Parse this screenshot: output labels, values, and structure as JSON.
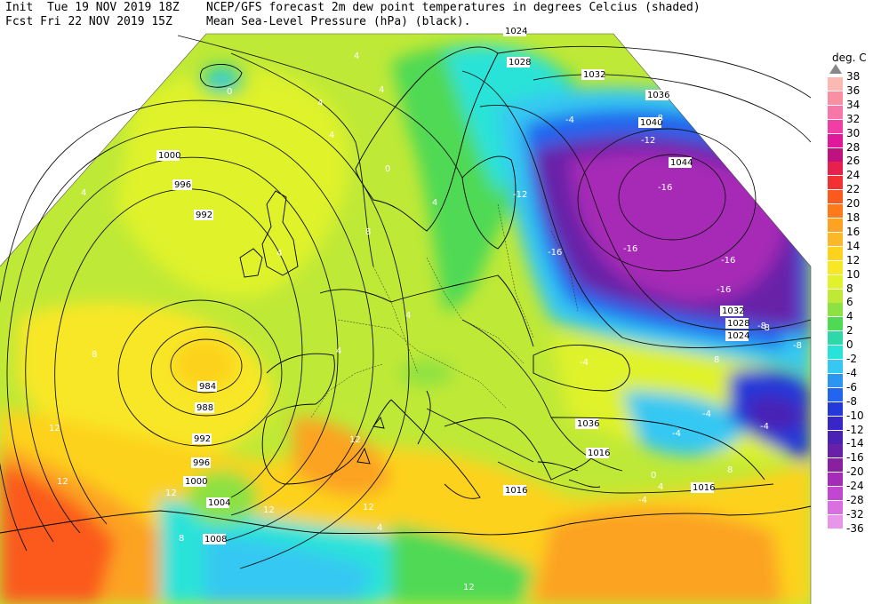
{
  "header": {
    "left_line1": "Init  Tue 19 NOV 2019 18Z",
    "left_line2": "Fcst Fri 22 NOV 2019 15Z",
    "right_line1": "NCEP/GFS forecast 2m dew point temperatures in degrees Celcius (shaded)",
    "right_line2": "Mean Sea-Level Pressure (hPa) (black)."
  },
  "legend": {
    "title": "deg. C",
    "levels": [
      "38",
      "36",
      "34",
      "32",
      "30",
      "28",
      "26",
      "24",
      "22",
      "20",
      "18",
      "16",
      "14",
      "12",
      "10",
      "8",
      "6",
      "4",
      "2",
      "0",
      "-2",
      "-4",
      "-6",
      "-8",
      "-10",
      "-12",
      "-14",
      "-16",
      "-20",
      "-24",
      "-28",
      "-32",
      "-36"
    ],
    "colors": [
      "#fbb9b3",
      "#f98fa0",
      "#f677a8",
      "#f03ea6",
      "#e0199c",
      "#c0127e",
      "#e7204d",
      "#f23232",
      "#fb5a1e",
      "#fd7a1b",
      "#fca324",
      "#fbb828",
      "#fdd21c",
      "#f8e727",
      "#dff22c",
      "#bfe937",
      "#8ce143",
      "#4fd955",
      "#2fd8a8",
      "#2ae3d8",
      "#35c8f2",
      "#2b95f0",
      "#2365ee",
      "#2339d9",
      "#3826c9",
      "#4a21b5",
      "#6820a8",
      "#8820a0",
      "#a62bb6",
      "#c246cf",
      "#d96fe0",
      "#e896ea"
    ]
  },
  "isobar_labels": [
    {
      "text": "1024"
    },
    {
      "text": "1028"
    },
    {
      "text": "1032"
    },
    {
      "text": "1036"
    },
    {
      "text": "1040"
    },
    {
      "text": "1044"
    },
    {
      "text": "1032"
    },
    {
      "text": "1028"
    },
    {
      "text": "1024"
    },
    {
      "text": "1036"
    },
    {
      "text": "1016"
    },
    {
      "text": "1016"
    },
    {
      "text": "1016"
    },
    {
      "text": "1000"
    },
    {
      "text": "996"
    },
    {
      "text": "992"
    },
    {
      "text": "984"
    },
    {
      "text": "988"
    },
    {
      "text": "992"
    },
    {
      "text": "996"
    },
    {
      "text": "1000"
    },
    {
      "text": "1004"
    },
    {
      "text": "1008"
    }
  ],
  "dewpoint_labels": [
    {
      "text": "4"
    },
    {
      "text": "4"
    },
    {
      "text": "4"
    },
    {
      "text": "4"
    },
    {
      "text": "0"
    },
    {
      "text": "0"
    },
    {
      "text": "4"
    },
    {
      "text": "8"
    },
    {
      "text": "4"
    },
    {
      "text": "4"
    },
    {
      "text": "4"
    },
    {
      "text": "8"
    },
    {
      "text": "12"
    },
    {
      "text": "12"
    },
    {
      "text": "12"
    },
    {
      "text": "12"
    },
    {
      "text": "12"
    },
    {
      "text": "-4"
    },
    {
      "text": "-8"
    },
    {
      "text": "-12"
    },
    {
      "text": "-16"
    },
    {
      "text": "-16"
    },
    {
      "text": "-16"
    },
    {
      "text": "-16"
    },
    {
      "text": "-16"
    },
    {
      "text": "-12"
    },
    {
      "text": "-8"
    },
    {
      "text": "-4"
    },
    {
      "text": "-4"
    },
    {
      "text": "-4"
    },
    {
      "text": "-4"
    },
    {
      "text": "8"
    },
    {
      "text": "4"
    },
    {
      "text": "0"
    },
    {
      "text": "8"
    },
    {
      "text": "12"
    },
    {
      "text": "4"
    },
    {
      "text": "-8"
    },
    {
      "text": "4"
    },
    {
      "text": "8"
    },
    {
      "text": "-4"
    },
    {
      "text": "-8"
    },
    {
      "text": "12"
    }
  ]
}
